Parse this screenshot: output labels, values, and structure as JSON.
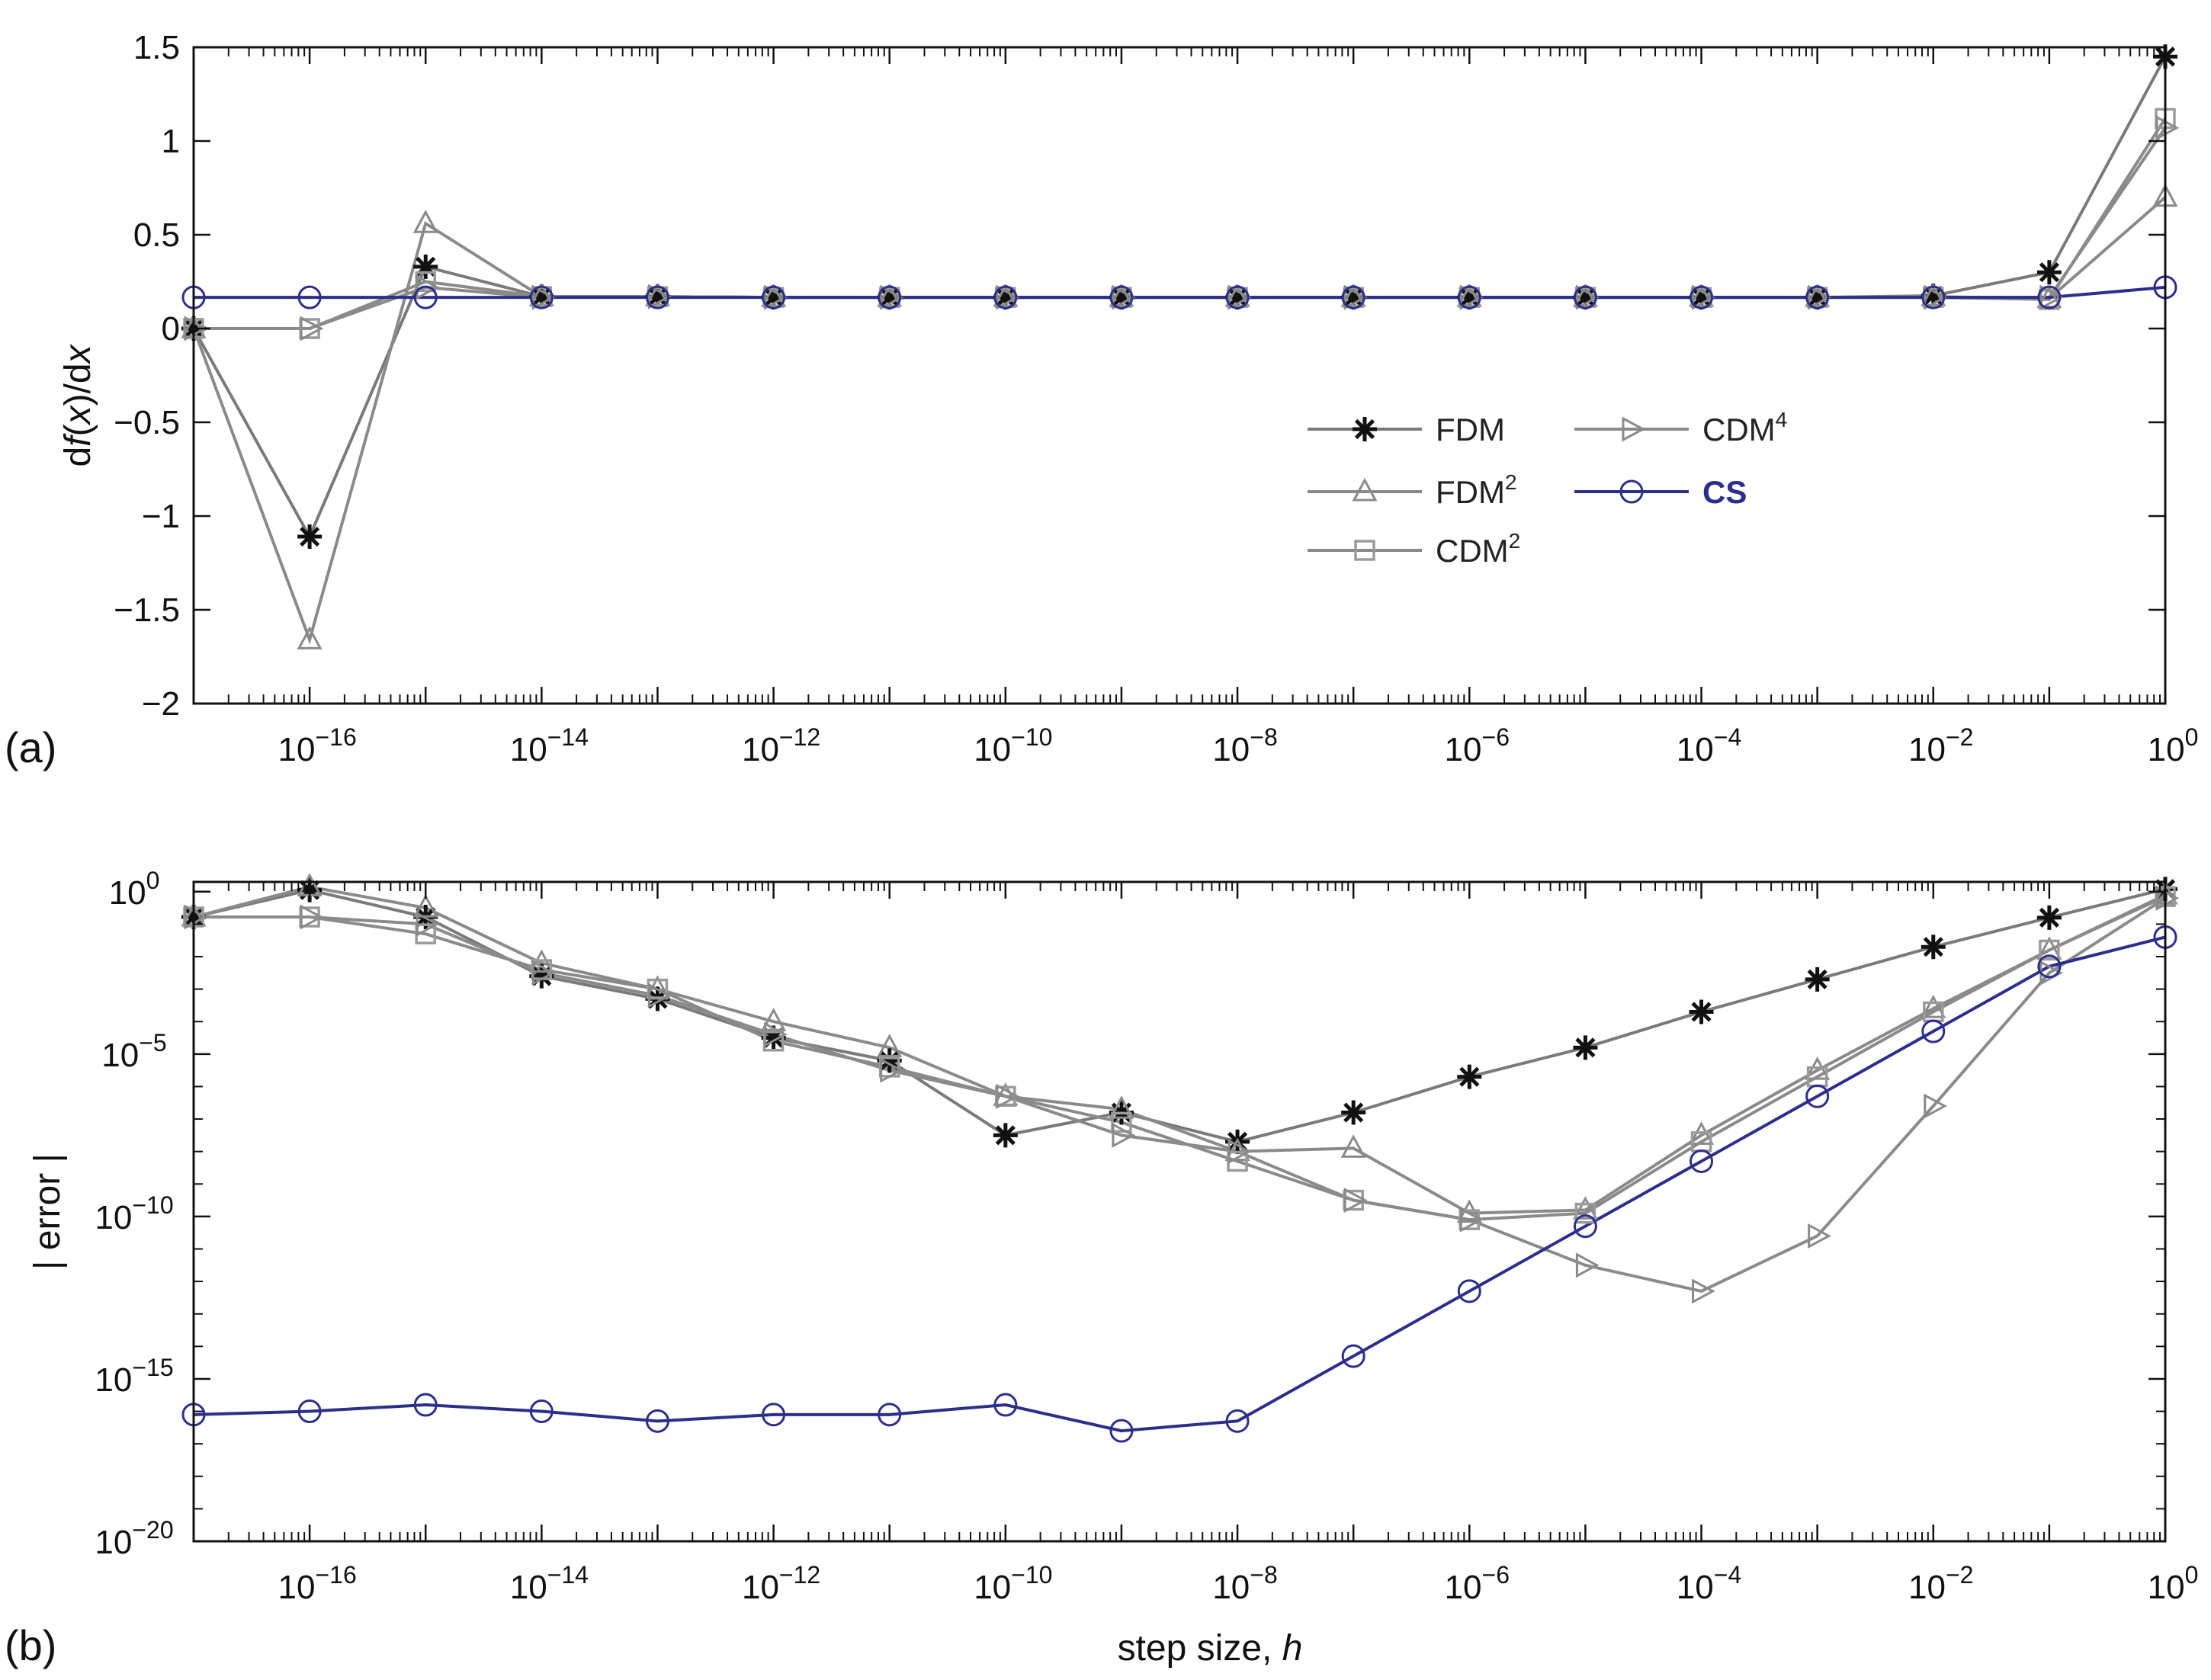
{
  "series_styles": {
    "FDM": {
      "color": "#7a7a7a",
      "marker": "star",
      "marker_color": "#111111"
    },
    "FDM2": {
      "color": "#8a8a8a",
      "marker": "triangle-up",
      "marker_color": "#8a8a8a"
    },
    "CDM2": {
      "color": "#8a8a8a",
      "marker": "square",
      "marker_color": "#9a9a9a"
    },
    "CDM4": {
      "color": "#8a8a8a",
      "marker": "triangle-right",
      "marker_color": "#8a8a8a"
    },
    "CS": {
      "color": "#2b2f8a",
      "marker": "circle",
      "marker_color": "#2b2f8a"
    }
  },
  "legend": [
    {
      "key": "FDM",
      "name": "FDM",
      "sup": ""
    },
    {
      "key": "FDM2",
      "name": "FDM",
      "sup": "2"
    },
    {
      "key": "CDM2",
      "name": "CDM",
      "sup": "2"
    },
    {
      "key": "CDM4",
      "name": "CDM",
      "sup": "4"
    },
    {
      "key": "CS",
      "name": "CS",
      "sup": ""
    }
  ],
  "chart_data": [
    {
      "panel": "(a)",
      "type": "line",
      "xscale": "log",
      "yscale": "linear",
      "xlim_exp": [
        -17,
        0
      ],
      "ylim": [
        -2,
        1.5
      ],
      "ylabel": {
        "pre": "d",
        "italic1": "f",
        "mid": "(",
        "italic2": "x",
        "post": ")/d",
        "italic3": "x"
      },
      "xlabel": "",
      "xtick_exponents": [
        "−16",
        "−14",
        "−12",
        "−10",
        "−8",
        "−6",
        "−4",
        "−2",
        "0"
      ],
      "ytick_labels": [
        "1.5",
        "1",
        "0.5",
        "0",
        "−0.5",
        "−1",
        "−1.5",
        "−2"
      ],
      "ytick_values": [
        1.5,
        1,
        0.5,
        0,
        -0.5,
        -1,
        -1.5,
        -2
      ],
      "x_exponents": [
        -17,
        -16,
        -15,
        -14,
        -13,
        -12,
        -11,
        -10,
        -9,
        -8,
        -7,
        -6,
        -5,
        -4,
        -3,
        -2,
        -1,
        0
      ],
      "series": [
        {
          "key": "FDM",
          "name": "FDM",
          "values": [
            0,
            -1.11,
            0.33,
            0.17,
            0.17,
            0.166,
            0.166,
            0.166,
            0.166,
            0.166,
            0.166,
            0.166,
            0.166,
            0.166,
            0.166,
            0.175,
            0.3,
            1.45
          ]
        },
        {
          "key": "FDM2",
          "name": "FDM2",
          "values": [
            0,
            -1.66,
            0.56,
            0.17,
            0.17,
            0.166,
            0.166,
            0.166,
            0.166,
            0.166,
            0.166,
            0.166,
            0.166,
            0.166,
            0.166,
            0.17,
            0.16,
            0.7
          ]
        },
        {
          "key": "CDM2",
          "name": "CDM2",
          "values": [
            0,
            0,
            0.25,
            0.17,
            0.17,
            0.166,
            0.166,
            0.166,
            0.166,
            0.166,
            0.166,
            0.166,
            0.166,
            0.166,
            0.166,
            0.166,
            0.155,
            1.12
          ]
        },
        {
          "key": "CDM4",
          "name": "CDM4",
          "values": [
            0,
            0,
            0.22,
            0.166,
            0.17,
            0.166,
            0.166,
            0.166,
            0.166,
            0.166,
            0.166,
            0.166,
            0.166,
            0.166,
            0.166,
            0.166,
            0.166,
            1.07
          ]
        },
        {
          "key": "CS",
          "name": "CS",
          "values": [
            0.166,
            0.166,
            0.166,
            0.166,
            0.166,
            0.166,
            0.166,
            0.166,
            0.166,
            0.166,
            0.166,
            0.166,
            0.166,
            0.166,
            0.166,
            0.166,
            0.166,
            0.22
          ]
        }
      ]
    },
    {
      "panel": "(b)",
      "type": "line",
      "xscale": "log",
      "yscale": "log",
      "xlim_exp": [
        -17,
        0
      ],
      "ylim_exp": [
        -20,
        0.3
      ],
      "ylabel": "| error |",
      "xlabel": {
        "text": "step size, ",
        "italic": "h"
      },
      "xtick_exponents": [
        "−16",
        "−14",
        "−12",
        "−10",
        "−8",
        "−6",
        "−4",
        "−2",
        "0"
      ],
      "ytick_exponents": [
        "0",
        "−5",
        "−10",
        "−15",
        "−20"
      ],
      "ytick_values_exp": [
        0,
        -5,
        -10,
        -15,
        -20
      ],
      "x_exponents": [
        -17,
        -16,
        -15,
        -14,
        -13,
        -12,
        -11,
        -10,
        -9,
        -8,
        -7,
        -6,
        -5,
        -4,
        -3,
        -2,
        -1,
        0
      ],
      "series_note": "values are log10(|error|)",
      "series": [
        {
          "key": "FDM",
          "name": "FDM",
          "values": [
            -0.78,
            0.05,
            -0.78,
            -2.6,
            -3.3,
            -4.5,
            -5.2,
            -7.5,
            -6.8,
            -7.7,
            -6.8,
            -5.7,
            -4.8,
            -3.7,
            -2.7,
            -1.7,
            -0.8,
            0.08
          ]
        },
        {
          "key": "FDM2",
          "name": "FDM2",
          "values": [
            -0.78,
            0.15,
            -0.5,
            -2.2,
            -3.0,
            -4.0,
            -4.8,
            -6.3,
            -6.7,
            -8.0,
            -7.9,
            -9.9,
            -9.8,
            -7.5,
            -5.5,
            -3.6,
            -1.8,
            -0.1
          ]
        },
        {
          "key": "CDM2",
          "name": "CDM2",
          "values": [
            -0.78,
            -0.78,
            -1.3,
            -2.4,
            -3.0,
            -4.6,
            -5.4,
            -6.3,
            -7.1,
            -8.3,
            -9.5,
            -10.1,
            -9.9,
            -7.7,
            -5.7,
            -3.7,
            -1.8,
            -0.15
          ]
        },
        {
          "key": "CDM4",
          "name": "CDM4",
          "values": [
            -0.78,
            -0.78,
            -1.0,
            -2.5,
            -3.2,
            -4.4,
            -5.5,
            -6.3,
            -7.5,
            -8.0,
            -9.5,
            -10.1,
            -11.5,
            -12.3,
            -10.6,
            -6.6,
            -2.5,
            -0.2
          ]
        },
        {
          "key": "CS",
          "name": "CS",
          "values": [
            -16.1,
            -16.0,
            -15.8,
            -16.0,
            -16.3,
            -16.1,
            -16.1,
            -15.8,
            -16.6,
            -16.3,
            -14.3,
            -12.3,
            -10.3,
            -8.3,
            -6.3,
            -4.3,
            -2.3,
            -1.4
          ]
        }
      ]
    }
  ]
}
